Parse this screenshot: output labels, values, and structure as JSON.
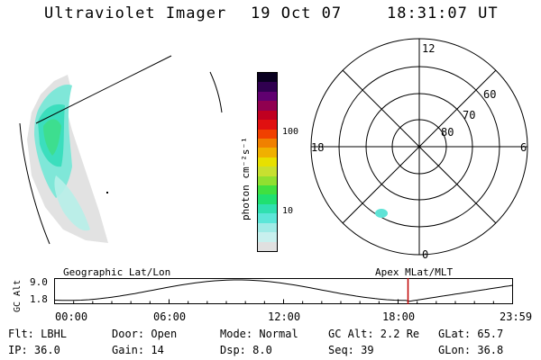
{
  "header": {
    "instrument": "Ultraviolet Imager",
    "date": "19 Oct 07",
    "time": "18:31:07 UT"
  },
  "colorbar": {
    "unit_label": "photon cm⁻²s⁻¹",
    "tick_100": "100",
    "tick_10": "10",
    "colors": [
      "#e0e0e0",
      "#c8f0ee",
      "#a0ebe6",
      "#5ce6d8",
      "#30e0b0",
      "#20e070",
      "#40e040",
      "#90e030",
      "#c8e030",
      "#e8e000",
      "#f0b000",
      "#f08000",
      "#f04000",
      "#e01010",
      "#c00020",
      "#900050",
      "#600070",
      "#300050",
      "#0a0020"
    ]
  },
  "polar_grid": {
    "mlt_top": "12",
    "mlt_bottom": "0",
    "mlt_left": "18",
    "mlt_right": "6",
    "lat_60": "60",
    "lat_70": "70",
    "lat_80": "80"
  },
  "altitude_plot": {
    "left_title": "Geographic Lat/Lon",
    "right_title": "Apex MLat/MLT",
    "ylabel": "GC Alt",
    "y_high": "9.0",
    "y_low": "1.8",
    "x_ticks": [
      "00:00",
      "06:00",
      "12:00",
      "18:00",
      "23:59"
    ],
    "current_time_hours": 18.52,
    "marker_color": "#c00000"
  },
  "footer": {
    "row1": {
      "flt": "Flt: LBHL",
      "door": "Door: Open",
      "mode": "Mode: Normal",
      "gc_alt": "GC Alt: 2.2 Re",
      "glat": "GLat:  65.7"
    },
    "row2": {
      "ip": "IP: 36.0",
      "gain": "Gain: 14",
      "dsp": "Dsp:    8.0",
      "seq": "Seq: 39",
      "glon": "GLon:  36.8"
    }
  }
}
